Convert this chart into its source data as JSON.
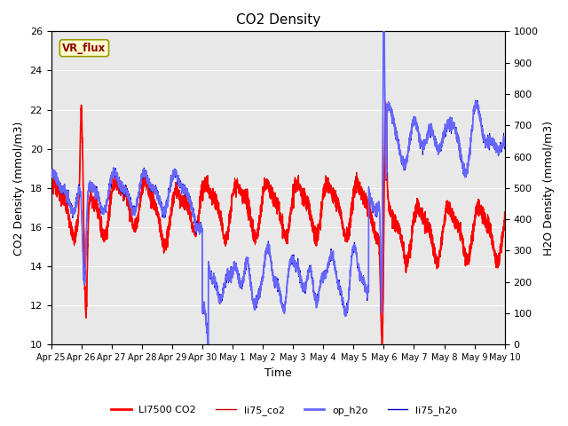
{
  "title": "CO2 Density",
  "xlabel": "Time",
  "ylabel_left": "CO2 Density (mmol/m3)",
  "ylabel_right": "H2O Density (mmol/m3)",
  "ylim_left": [
    10,
    26
  ],
  "ylim_right": [
    0,
    1000
  ],
  "yticks_left": [
    10,
    12,
    14,
    16,
    18,
    20,
    22,
    24,
    26
  ],
  "yticks_right": [
    0,
    100,
    200,
    300,
    400,
    500,
    600,
    700,
    800,
    900,
    1000
  ],
  "xtick_labels": [
    "Apr 25",
    "Apr 26",
    "Apr 27",
    "Apr 28",
    "Apr 29",
    "Apr 30",
    "May 1",
    "May 2",
    "May 3",
    "May 4",
    "May 5",
    "May 6",
    "May 7",
    "May 8",
    "May 9",
    "May 10"
  ],
  "background_color": "#ffffff",
  "plot_bg_color": "#e8e8e8",
  "annotation_text": "VR_flux",
  "annotation_bg": "#ffffcc",
  "annotation_border": "#999900",
  "legend_entries": [
    "LI7500 CO2",
    "li75_co2",
    "op_h2o",
    "li75_h2o"
  ],
  "line_LI7500_CO2_color": "#ff0000",
  "line_li75_co2_color": "#cc0000",
  "line_op_h2o_color": "#6666ff",
  "line_li75_h2o_color": "#0000cc",
  "legend_colors_red": [
    "#ff0000",
    "#cc0000"
  ],
  "legend_colors_blue": [
    "#6666ff",
    "#0000cc"
  ],
  "grid_color": "#ffffff",
  "title_fontsize": 11,
  "axis_fontsize": 9,
  "tick_fontsize": 8,
  "xtick_fontsize": 7
}
